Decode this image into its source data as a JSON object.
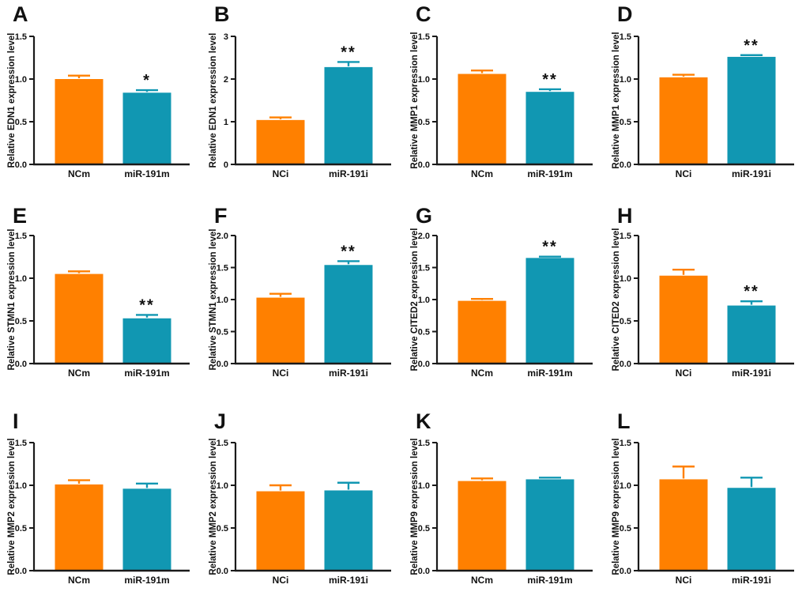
{
  "figure": {
    "background": "#ffffff",
    "bar_colors": [
      "#FF8000",
      "#1197B2"
    ],
    "axis_color": "#1a1a1a",
    "text_color": "#111111"
  },
  "chart_data": [
    {
      "type": "bar",
      "panel": "A",
      "ylabel": "Relative EDN1 expression level",
      "categories": [
        "NCm",
        "miR-191m"
      ],
      "values": [
        1.0,
        0.84
      ],
      "errors": [
        0.04,
        0.03
      ],
      "significance": "*",
      "significance_on": "miR-191m",
      "ylim": [
        0,
        1.5
      ],
      "ytick_labels": [
        "0.0",
        "0.5",
        "1.0",
        "1.5"
      ]
    },
    {
      "type": "bar",
      "panel": "B",
      "ylabel": "Relative EDN1 expression level",
      "categories": [
        "NCi",
        "miR-191i"
      ],
      "values": [
        1.04,
        2.28
      ],
      "errors": [
        0.06,
        0.12
      ],
      "significance": "**",
      "significance_on": "miR-191i",
      "ylim": [
        0,
        3
      ],
      "ytick_labels": [
        "0",
        "1",
        "2",
        "3"
      ]
    },
    {
      "type": "bar",
      "panel": "C",
      "ylabel": "Relative MMP1 expression level",
      "categories": [
        "NCm",
        "miR-191m"
      ],
      "values": [
        1.06,
        0.85
      ],
      "errors": [
        0.04,
        0.03
      ],
      "significance": "**",
      "significance_on": "miR-191m",
      "ylim": [
        0,
        1.5
      ],
      "ytick_labels": [
        "0.0",
        "0.5",
        "1.0",
        "1.5"
      ]
    },
    {
      "type": "bar",
      "panel": "D",
      "ylabel": "Relative MMP1 expression level",
      "categories": [
        "NCi",
        "miR-191i"
      ],
      "values": [
        1.02,
        1.26
      ],
      "errors": [
        0.03,
        0.02
      ],
      "significance": "**",
      "significance_on": "miR-191i",
      "ylim": [
        0,
        1.5
      ],
      "ytick_labels": [
        "0.0",
        "0.5",
        "1.0",
        "1.5"
      ]
    },
    {
      "type": "bar",
      "panel": "E",
      "ylabel": "Relative STMN1 expression level",
      "categories": [
        "NCm",
        "miR-191m"
      ],
      "values": [
        1.05,
        0.53
      ],
      "errors": [
        0.03,
        0.04
      ],
      "significance": "**",
      "significance_on": "miR-191m",
      "ylim": [
        0,
        1.5
      ],
      "ytick_labels": [
        "0.0",
        "0.5",
        "1.0",
        "1.5"
      ]
    },
    {
      "type": "bar",
      "panel": "F",
      "ylabel": "Relative STMN1 expression level",
      "categories": [
        "NCi",
        "miR-191i"
      ],
      "values": [
        1.03,
        1.54
      ],
      "errors": [
        0.06,
        0.06
      ],
      "significance": "**",
      "significance_on": "miR-191i",
      "ylim": [
        0,
        2
      ],
      "ytick_labels": [
        "0.0",
        "0.5",
        "1.0",
        "1.5",
        "2.0"
      ]
    },
    {
      "type": "bar",
      "panel": "G",
      "ylabel": "Relative CITED2 expression level",
      "categories": [
        "NCm",
        "miR-191m"
      ],
      "values": [
        0.98,
        1.65
      ],
      "errors": [
        0.03,
        0.02
      ],
      "significance": "**",
      "significance_on": "miR-191m",
      "ylim": [
        0,
        2
      ],
      "ytick_labels": [
        "0.0",
        "0.5",
        "1.0",
        "1.5",
        "2.0"
      ]
    },
    {
      "type": "bar",
      "panel": "H",
      "ylabel": "Relative CITED2 expression level",
      "categories": [
        "NCi",
        "miR-191i"
      ],
      "values": [
        1.03,
        0.68
      ],
      "errors": [
        0.07,
        0.05
      ],
      "significance": "**",
      "significance_on": "miR-191i",
      "ylim": [
        0,
        1.5
      ],
      "ytick_labels": [
        "0.0",
        "0.5",
        "1.0",
        "1.5"
      ]
    },
    {
      "type": "bar",
      "panel": "I",
      "ylabel": "Relative MMP2 expression level",
      "categories": [
        "NCm",
        "miR-191m"
      ],
      "values": [
        1.01,
        0.96
      ],
      "errors": [
        0.05,
        0.06
      ],
      "significance": "",
      "significance_on": "",
      "ylim": [
        0,
        1.5
      ],
      "ytick_labels": [
        "0.0",
        "0.5",
        "1.0",
        "1.5"
      ]
    },
    {
      "type": "bar",
      "panel": "J",
      "ylabel": "Relative MMP2 expression level",
      "categories": [
        "NCi",
        "miR-191i"
      ],
      "values": [
        0.93,
        0.94
      ],
      "errors": [
        0.07,
        0.09
      ],
      "significance": "",
      "significance_on": "",
      "ylim": [
        0,
        1.5
      ],
      "ytick_labels": [
        "0.0",
        "0.5",
        "1.0",
        "1.5"
      ]
    },
    {
      "type": "bar",
      "panel": "K",
      "ylabel": "Relative MMP9 expression level",
      "categories": [
        "NCm",
        "miR-191m"
      ],
      "values": [
        1.05,
        1.07
      ],
      "errors": [
        0.03,
        0.02
      ],
      "significance": "",
      "significance_on": "",
      "ylim": [
        0,
        1.5
      ],
      "ytick_labels": [
        "0.0",
        "0.5",
        "1.0",
        "1.5"
      ]
    },
    {
      "type": "bar",
      "panel": "L",
      "ylabel": "Relative MMP9 expression level",
      "categories": [
        "NCi",
        "miR-191i"
      ],
      "values": [
        1.07,
        0.97
      ],
      "errors": [
        0.15,
        0.12
      ],
      "significance": "",
      "significance_on": "",
      "ylim": [
        0,
        1.5
      ],
      "ytick_labels": [
        "0.0",
        "0.5",
        "1.0",
        "1.5"
      ]
    }
  ]
}
